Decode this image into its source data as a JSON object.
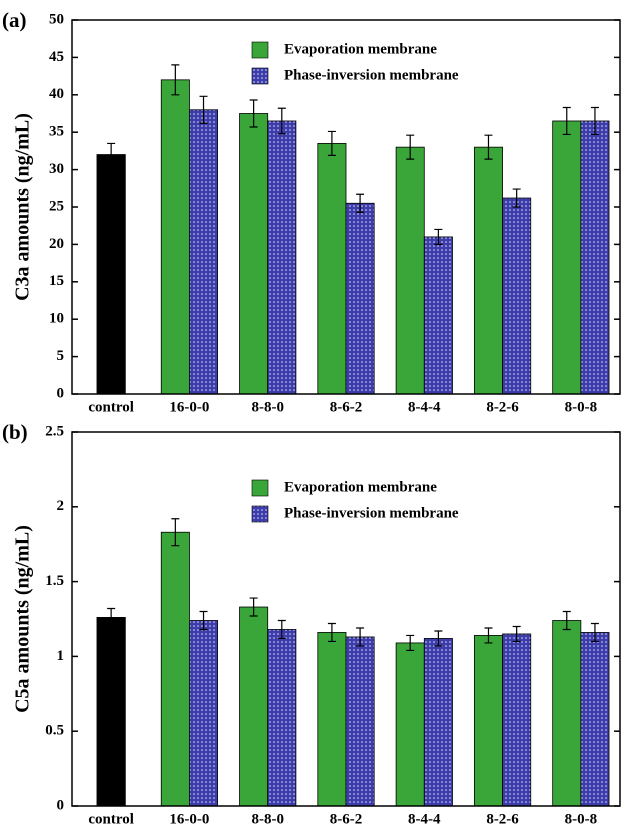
{
  "chart_data": [
    {
      "type": "bar",
      "label": "(a)",
      "y_label": "C3a amounts (ng/mL)",
      "categories": [
        "control",
        "16-0-0",
        "8-8-0",
        "8-6-2",
        "8-4-4",
        "8-2-6",
        "8-0-8"
      ],
      "control": {
        "value": 32,
        "error": 1.5,
        "color": "#000000"
      },
      "series": [
        {
          "name": "Evaporation membrane",
          "color": "#3aa63a",
          "values": [
            null,
            42,
            37.5,
            33.5,
            33,
            33,
            36.5
          ],
          "errors": [
            null,
            2,
            1.8,
            1.6,
            1.6,
            1.6,
            1.8
          ]
        },
        {
          "name": "Phase-inversion membrane",
          "color": "#3c3caa",
          "pattern": "dots",
          "values": [
            null,
            38,
            36.5,
            25.5,
            21,
            26.2,
            36.5
          ],
          "errors": [
            null,
            1.8,
            1.7,
            1.2,
            1,
            1.2,
            1.8
          ]
        }
      ],
      "ylim": [
        0,
        50
      ],
      "yticks": [
        0,
        5,
        10,
        15,
        20,
        25,
        30,
        35,
        40,
        45,
        50
      ],
      "legend": "upper center"
    },
    {
      "type": "bar",
      "label": "(b)",
      "y_label": "C5a amounts (ng/mL)",
      "categories": [
        "control",
        "16-0-0",
        "8-8-0",
        "8-6-2",
        "8-4-4",
        "8-2-6",
        "8-0-8"
      ],
      "control": {
        "value": 1.26,
        "error": 0.06,
        "color": "#000000"
      },
      "series": [
        {
          "name": "Evaporation membrane",
          "color": "#3aa63a",
          "values": [
            null,
            1.83,
            1.33,
            1.16,
            1.09,
            1.14,
            1.24
          ],
          "errors": [
            null,
            0.09,
            0.06,
            0.06,
            0.05,
            0.05,
            0.06
          ]
        },
        {
          "name": "Phase-inversion membrane",
          "color": "#3c3caa",
          "pattern": "dots",
          "values": [
            null,
            1.24,
            1.18,
            1.13,
            1.12,
            1.15,
            1.16
          ],
          "errors": [
            null,
            0.06,
            0.06,
            0.06,
            0.05,
            0.05,
            0.06
          ]
        }
      ],
      "ylim": [
        0,
        2.5
      ],
      "yticks": [
        0,
        0.5,
        1,
        1.5,
        2,
        2.5
      ],
      "legend": "upper center"
    }
  ]
}
